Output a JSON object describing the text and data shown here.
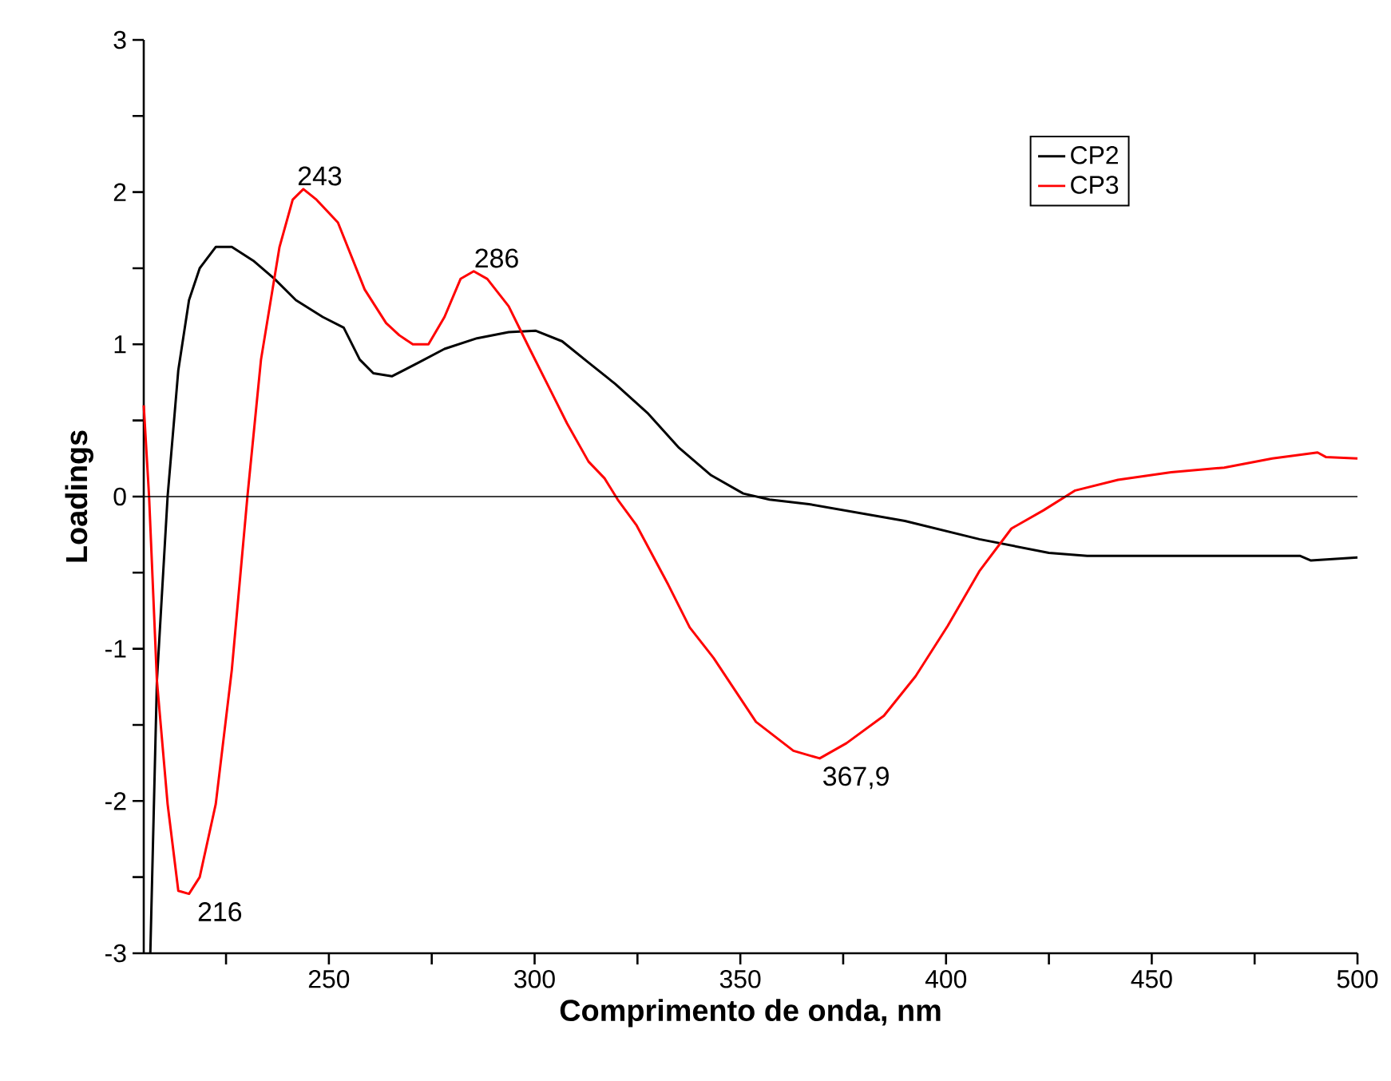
{
  "chart_data": {
    "type": "line",
    "xlabel": "Comprimento de onda, nm",
    "ylabel": "Loadings",
    "xlim": [
      205,
      500
    ],
    "ylim": [
      -3,
      3
    ],
    "xticks": [
      {
        "value": 225,
        "label": null
      },
      250,
      {
        "value": 275,
        "label": null
      },
      300,
      {
        "value": 325,
        "label": null
      },
      350,
      {
        "value": 375,
        "label": null
      },
      400,
      {
        "value": 425,
        "label": null
      },
      450,
      {
        "value": 475,
        "label": null
      },
      500
    ],
    "yticks": [
      -3,
      {
        "value": -2.5,
        "label": null
      },
      -2,
      {
        "value": -1.5,
        "label": null
      },
      -1,
      {
        "value": -0.5,
        "label": null
      },
      0,
      {
        "value": 0.5,
        "label": null
      },
      1,
      {
        "value": 1.5,
        "label": null
      },
      2,
      {
        "value": 2.5,
        "label": null
      },
      3
    ],
    "legend": "top right",
    "ref_lines": [
      {
        "axis": "y",
        "value": 0,
        "color": "#000000"
      }
    ],
    "annotations": [
      {
        "text": "243",
        "x": 243,
        "y": 2.02
      },
      {
        "text": "286",
        "x": 286,
        "y": 1.48
      },
      {
        "text": "216",
        "x": 216,
        "y": -2.61
      },
      {
        "text": "367,9",
        "x": 367.9,
        "y": -1.72
      }
    ],
    "series": [
      {
        "name": "CP2",
        "color": "#000000",
        "x": [
          206.6,
          208.2,
          210.8,
          213.4,
          216,
          218.6,
          222.5,
          226.4,
          231.6,
          236.8,
          242,
          248.5,
          253.6,
          257.5,
          260.8,
          265.3,
          271.8,
          278.1,
          286,
          293.7,
          300.2,
          306.7,
          313.1,
          319.6,
          327.4,
          335.1,
          342.9,
          350.7,
          357.1,
          366.7,
          390,
          408.1,
          425,
          434.3,
          460.2,
          486.1,
          488.7,
          500
        ],
        "values": [
          -3,
          -1.21,
          0,
          0.83,
          1.29,
          1.5,
          1.64,
          1.64,
          1.55,
          1.43,
          1.29,
          1.18,
          1.11,
          0.9,
          0.81,
          0.79,
          0.88,
          0.97,
          1.04,
          1.08,
          1.09,
          1.02,
          0.88,
          0.74,
          0.55,
          0.32,
          0.14,
          0.02,
          -0.02,
          -0.05,
          -0.16,
          -0.28,
          -0.37,
          -0.39,
          -0.39,
          -0.39,
          -0.42,
          -0.4
        ]
      },
      {
        "name": "CP3",
        "color": "#ff0000",
        "x": [
          205,
          206.3,
          208.2,
          210.8,
          213.4,
          216,
          218.6,
          222.5,
          226.4,
          230.2,
          233.5,
          238,
          241.2,
          243.8,
          247,
          252.2,
          258.7,
          263.9,
          267.1,
          270.4,
          274.2,
          278.1,
          282,
          285.2,
          288.5,
          293.7,
          298.8,
          304,
          307.9,
          313.1,
          317,
          320.2,
          324.8,
          332.5,
          337.7,
          343.5,
          353.8,
          362.9,
          369.3,
          375.8,
          384.9,
          392.6,
          400.4,
          408.1,
          415.9,
          423.7,
          431.4,
          441.8,
          454.7,
          467.6,
          479.3,
          490.3,
          492.3,
          500
        ],
        "values": [
          0.6,
          0,
          -1.21,
          -2.02,
          -2.59,
          -2.61,
          -2.5,
          -2.02,
          -1.14,
          0,
          0.9,
          1.64,
          1.95,
          2.02,
          1.95,
          1.8,
          1.36,
          1.14,
          1.06,
          1.0,
          1.0,
          1.18,
          1.43,
          1.48,
          1.43,
          1.25,
          0.97,
          0.69,
          0.48,
          0.23,
          0.12,
          -0.02,
          -0.19,
          -0.58,
          -0.86,
          -1.06,
          -1.48,
          -1.67,
          -1.72,
          -1.62,
          -1.44,
          -1.18,
          -0.85,
          -0.49,
          -0.21,
          -0.09,
          0.04,
          0.11,
          0.16,
          0.19,
          0.25,
          0.29,
          0.26,
          0.25
        ]
      }
    ]
  }
}
